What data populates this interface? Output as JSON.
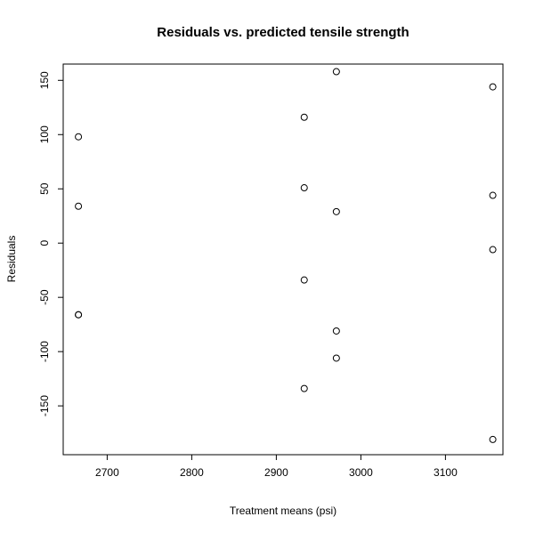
{
  "chart_data": {
    "type": "scatter",
    "title": "Residuals vs. predicted tensile strength",
    "xlabel": "Treatment  means (psi)",
    "ylabel": "Residuals",
    "xlim": [
      2648,
      3168
    ],
    "ylim": [
      -195,
      165
    ],
    "xticks": [
      2700,
      2800,
      2900,
      3000,
      3100
    ],
    "yticks": [
      -150,
      -100,
      -50,
      0,
      50,
      100,
      150
    ],
    "grid": false,
    "marker": "open-circle",
    "points": [
      {
        "x": 2666,
        "y": 98
      },
      {
        "x": 2666,
        "y": 34
      },
      {
        "x": 2666,
        "y": -66
      },
      {
        "x": 2666,
        "y": -66
      },
      {
        "x": 2933,
        "y": 116
      },
      {
        "x": 2933,
        "y": 51
      },
      {
        "x": 2933,
        "y": -34
      },
      {
        "x": 2933,
        "y": -134
      },
      {
        "x": 2971,
        "y": 158
      },
      {
        "x": 2971,
        "y": 29
      },
      {
        "x": 2971,
        "y": -81
      },
      {
        "x": 2971,
        "y": -106
      },
      {
        "x": 3156,
        "y": 144
      },
      {
        "x": 3156,
        "y": 44
      },
      {
        "x": 3156,
        "y": -6
      },
      {
        "x": 3156,
        "y": -181
      }
    ]
  }
}
